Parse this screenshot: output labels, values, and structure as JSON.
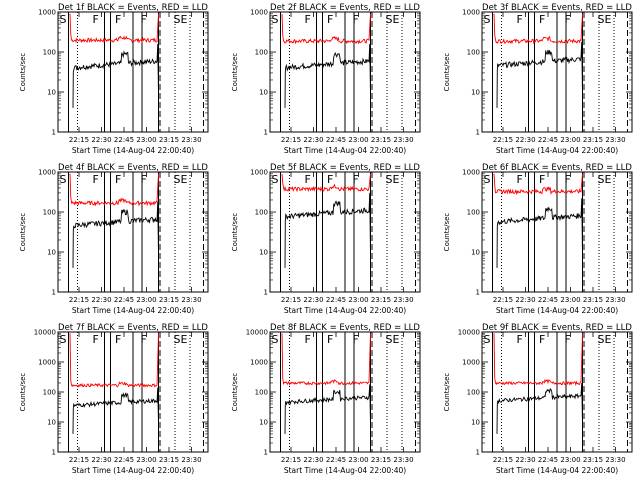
{
  "chart_data": {
    "type": "line",
    "layout": "3x3 grid",
    "xlabel": "Start Time (14-Aug-04 22:00:40)",
    "ylabel": "Counts/sec",
    "yscale": "log",
    "ylim": [
      1,
      1000
    ],
    "xlim": [
      0,
      100
    ],
    "xticks": [
      {
        "x": 14,
        "label": "22:15"
      },
      {
        "x": 29,
        "label": "22:30"
      },
      {
        "x": 44,
        "label": "22:45"
      },
      {
        "x": 59,
        "label": "23:00"
      },
      {
        "x": 74,
        "label": "23:15"
      },
      {
        "x": 89,
        "label": "23:30"
      }
    ],
    "yticks_default": [
      1,
      10,
      100,
      1000
    ],
    "yticks_tall": [
      1,
      10,
      100,
      1000,
      10000
    ],
    "segment_labels": [
      "S",
      "F",
      "F",
      "F",
      "SE"
    ],
    "segment_label_x": [
      1,
      23,
      38,
      55,
      77
    ],
    "colors": {
      "events": "#000000",
      "lld": "#ff0000"
    },
    "panels": [
      {
        "title": "Det 1f BLACK = Events, RED = LLD",
        "ymax": 1000,
        "events_level": 40,
        "lld_level": 200,
        "solid_lines": [
          7,
          31,
          35,
          50,
          56,
          67
        ],
        "dotted_lines": [
          13,
          78,
          88
        ],
        "dashed_lines": [
          68,
          97
        ]
      },
      {
        "title": "Det 2f BLACK = Events, RED = LLD",
        "ymax": 1000,
        "events_level": 40,
        "lld_level": 190,
        "solid_lines": [
          7,
          31,
          35,
          50,
          56,
          67
        ],
        "dotted_lines": [
          13,
          78,
          88
        ],
        "dashed_lines": [
          68,
          97
        ]
      },
      {
        "title": "Det 3f BLACK = Events, RED = LLD",
        "ymax": 1000,
        "events_level": 45,
        "lld_level": 190,
        "solid_lines": [
          7,
          31,
          35,
          50,
          56,
          67
        ],
        "dotted_lines": [
          13,
          78,
          88
        ],
        "dashed_lines": [
          68,
          97
        ]
      },
      {
        "title": "Det 4f BLACK = Events, RED = LLD",
        "ymax": 1000,
        "events_level": 45,
        "lld_level": 170,
        "solid_lines": [
          7,
          31,
          35,
          50,
          56,
          67
        ],
        "dotted_lines": [
          13,
          78,
          88
        ],
        "dashed_lines": [
          68,
          97
        ]
      },
      {
        "title": "Det 5f BLACK = Events, RED = LLD",
        "ymax": 1000,
        "events_level": 75,
        "lld_level": 380,
        "solid_lines": [
          7,
          31,
          35,
          50,
          56,
          67
        ],
        "dotted_lines": [
          13,
          78,
          88
        ],
        "dashed_lines": [
          68,
          97
        ]
      },
      {
        "title": "Det 6f BLACK = Events, RED = LLD",
        "ymax": 1000,
        "events_level": 55,
        "lld_level": 330,
        "solid_lines": [
          7,
          31,
          35,
          50,
          56,
          67
        ],
        "dotted_lines": [
          13,
          78,
          88
        ],
        "dashed_lines": [
          68,
          97
        ]
      },
      {
        "title": "Det 7f BLACK = Events, RED = LLD",
        "ymax": 10000,
        "events_level": 35,
        "lld_level": 170,
        "solid_lines": [
          7,
          31,
          35,
          50,
          56,
          67
        ],
        "dotted_lines": [
          13,
          78,
          88
        ],
        "dashed_lines": [
          68,
          97
        ]
      },
      {
        "title": "Det 8f BLACK = Events, RED = LLD",
        "ymax": 10000,
        "events_level": 45,
        "lld_level": 200,
        "solid_lines": [
          7,
          31,
          35,
          50,
          56,
          67
        ],
        "dotted_lines": [
          13,
          78,
          88
        ],
        "dashed_lines": [
          68,
          97
        ]
      },
      {
        "title": "Det 9f BLACK = Events, RED = LLD",
        "ymax": 10000,
        "events_level": 50,
        "lld_level": 200,
        "solid_lines": [
          7,
          31,
          35,
          50,
          56,
          67
        ],
        "dotted_lines": [
          13,
          78,
          88
        ],
        "dashed_lines": [
          68,
          97
        ]
      }
    ]
  }
}
